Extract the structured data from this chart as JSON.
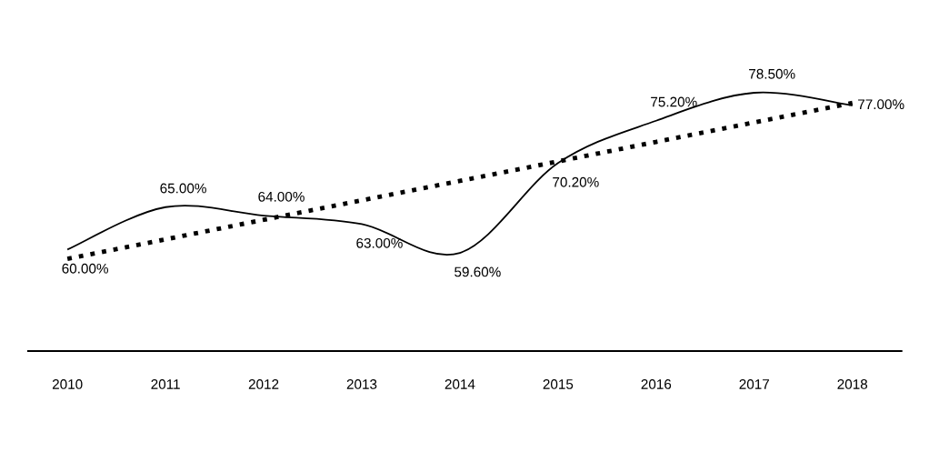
{
  "chart_data": {
    "type": "line",
    "categories": [
      "2010",
      "2011",
      "2012",
      "2013",
      "2014",
      "2015",
      "2016",
      "2017",
      "2018"
    ],
    "series": [
      {
        "color": "#000000",
        "values": [
          60.0,
          65.0,
          64.0,
          63.0,
          59.6,
          70.2,
          75.2,
          78.5,
          77.0
        ],
        "value_labels": [
          "60.00%",
          "65.00%",
          "64.00%",
          "63.00%",
          "59.60%",
          "70.20%",
          "75.20%",
          "78.50%",
          "77.00%"
        ]
      },
      {
        "type": "line",
        "color": "#000000",
        "line_style": "dotted",
        "values": [
          58.9,
          61.2,
          63.5,
          65.8,
          68.1,
          70.4,
          72.7,
          75.0,
          77.3
        ]
      }
    ],
    "grid": false,
    "legend": false,
    "marker": "none"
  }
}
